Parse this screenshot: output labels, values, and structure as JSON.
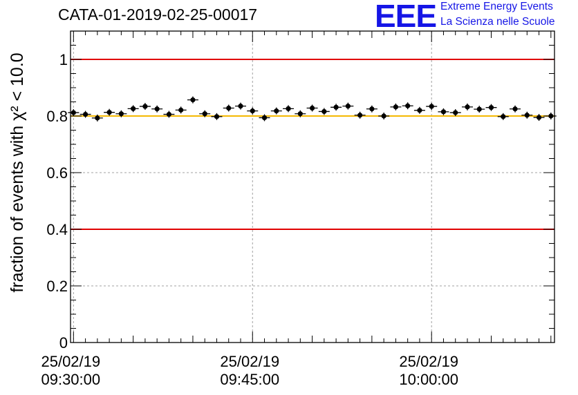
{
  "title": "CATA-01-2019-02-25-00017",
  "logo": {
    "mark": "EEE",
    "line1": "Extreme Energy Events",
    "line2": "La Scienza nelle Scuole",
    "color": "#1515e6"
  },
  "chart_data": {
    "type": "scatter",
    "title": "CATA-01-2019-02-25-00017",
    "ylabel": "fraction of events with χ² < 10.0",
    "xlabel": "",
    "ylim": [
      0,
      1.1
    ],
    "yticks": [
      0,
      0.2,
      0.4,
      0.6,
      0.8,
      1
    ],
    "ytick_labels": [
      "0",
      "0.2",
      "0.4",
      "0.6",
      "0.8",
      "1"
    ],
    "xlim_minutes": [
      -0.25,
      40.3
    ],
    "x_unit": "minutes after 25/02/19 09:30:00",
    "xticks": [
      {
        "minute": 0,
        "date": "25/02/19",
        "time": "09:30:00"
      },
      {
        "minute": 15,
        "date": "25/02/19",
        "time": "09:45:00"
      },
      {
        "minute": 30,
        "date": "25/02/19",
        "time": "10:00:00"
      }
    ],
    "grid": true,
    "reference_lines": [
      {
        "y": 1.0,
        "color": "#e00000"
      },
      {
        "y": 0.8,
        "color": "#f5b800"
      },
      {
        "y": 0.4,
        "color": "#e00000"
      }
    ],
    "marker_color": "#000000",
    "series": [
      {
        "x_minutes": [
          0.0,
          1.0,
          2.0,
          3.0,
          4.0,
          5.0,
          6.0,
          7.0,
          8.0,
          9.0,
          10.0,
          11.0,
          12.0,
          13.0,
          14.0,
          15.0,
          16.0,
          17.0,
          18.0,
          19.0,
          20.0,
          21.0,
          22.0,
          23.0,
          24.0,
          25.0,
          26.0,
          27.0,
          28.0,
          29.0,
          30.0,
          31.0,
          32.0,
          33.0,
          34.0,
          35.0,
          36.0,
          37.0,
          38.0,
          39.0,
          40.0
        ],
        "y": [
          0.812,
          0.806,
          0.793,
          0.813,
          0.808,
          0.826,
          0.834,
          0.825,
          0.806,
          0.821,
          0.857,
          0.808,
          0.798,
          0.828,
          0.835,
          0.818,
          0.794,
          0.818,
          0.826,
          0.808,
          0.828,
          0.816,
          0.831,
          0.835,
          0.803,
          0.825,
          0.8,
          0.832,
          0.836,
          0.82,
          0.834,
          0.815,
          0.812,
          0.832,
          0.824,
          0.83,
          0.798,
          0.825,
          0.803,
          0.795,
          0.8
        ]
      }
    ]
  }
}
